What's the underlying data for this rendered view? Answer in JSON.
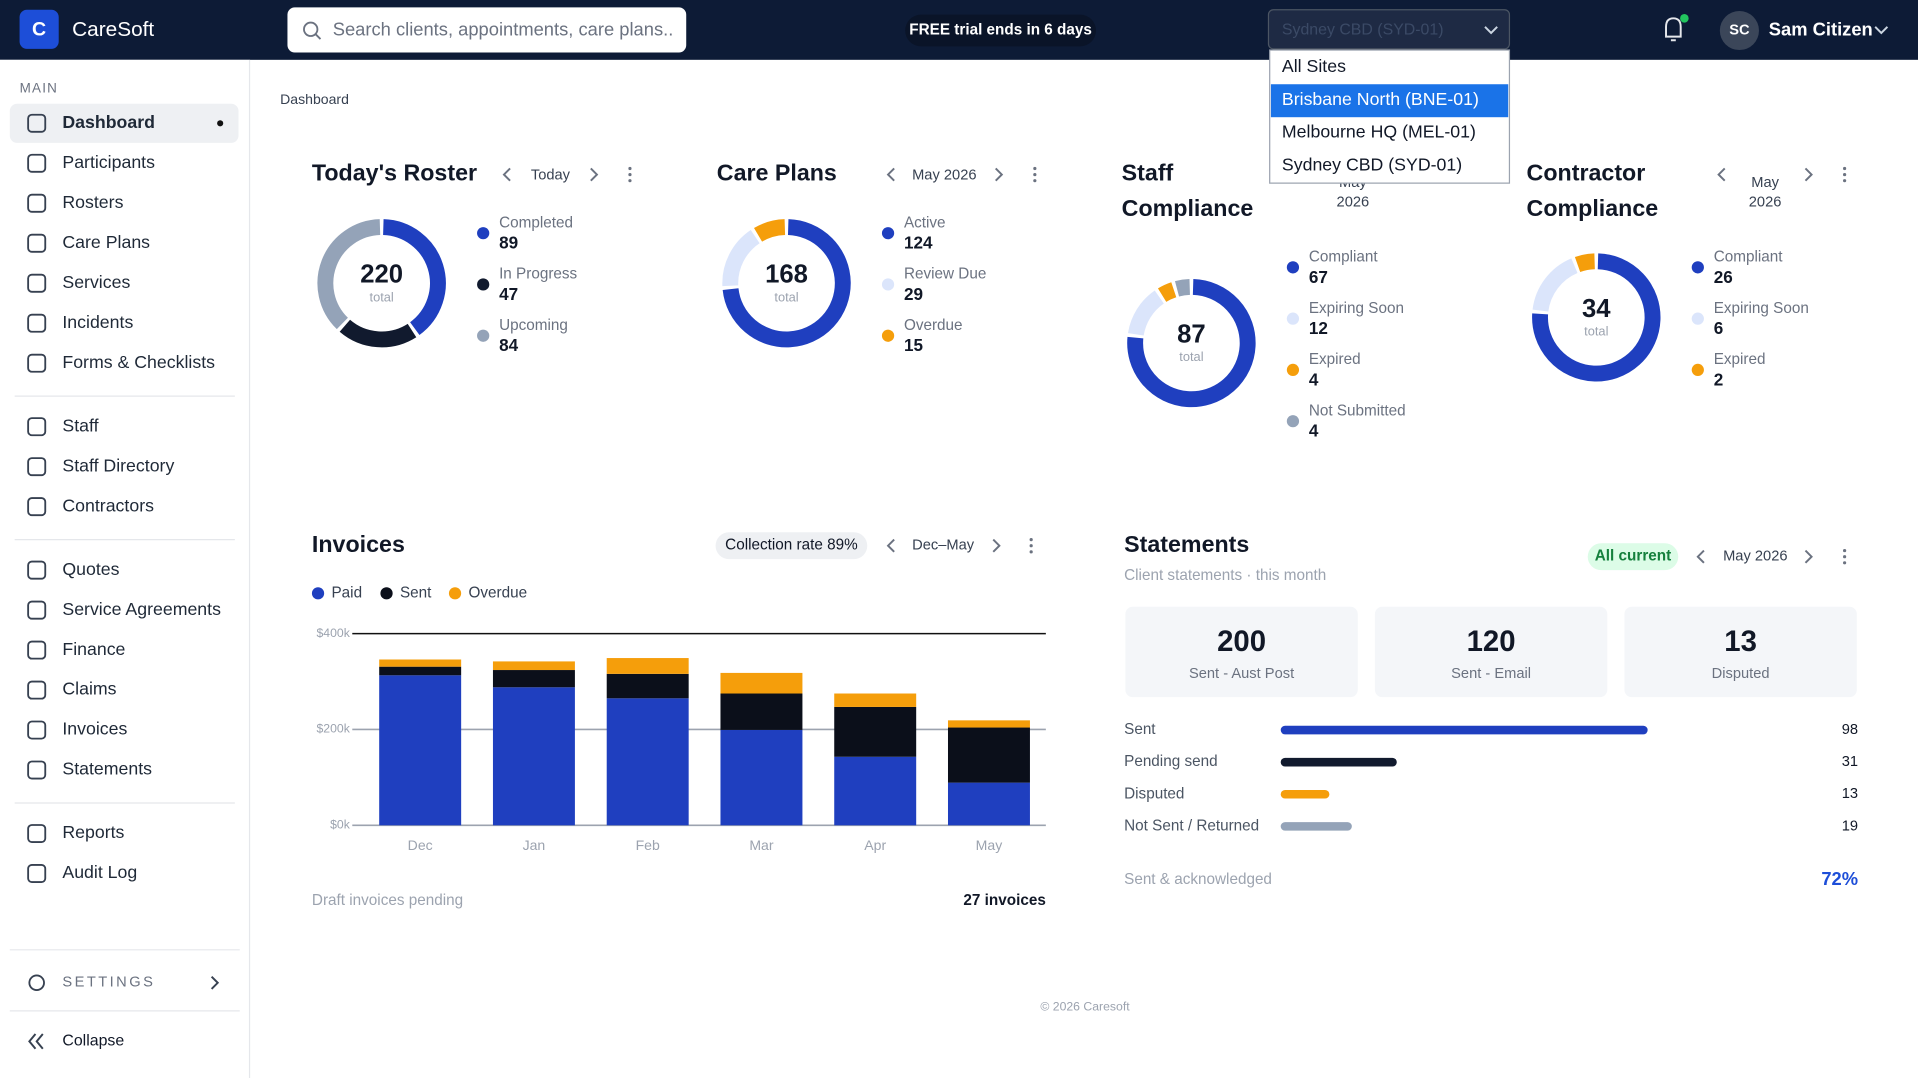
{
  "header": {
    "logo_letter": "C",
    "app_name": "CareSoft",
    "search_placeholder": "Search clients, appointments, care plans..",
    "trial_banner": "FREE trial ends in 6 days",
    "site_select": "Sydney CBD (SYD-01)",
    "user_initials": "SC",
    "user_name": "Sam Citizen"
  },
  "site_dropdown": {
    "options": [
      "All Sites",
      "Brisbane North (BNE-01)",
      "Melbourne HQ (MEL-01)",
      "Sydney CBD (SYD-01)"
    ],
    "highlighted": 1
  },
  "sidebar": {
    "section_label": "MAIN",
    "groups": [
      [
        "Dashboard",
        "Participants",
        "Rosters",
        "Care Plans",
        "Services",
        "Incidents",
        "Forms & Checklists"
      ],
      [
        "Staff",
        "Staff Directory",
        "Contractors"
      ],
      [
        "Quotes",
        "Service Agreements",
        "Finance",
        "Claims",
        "Invoices",
        "Statements"
      ],
      [
        "Reports",
        "Audit Log"
      ]
    ],
    "active": [
      0,
      0
    ],
    "settings_label": "SETTINGS",
    "collapse_label": "Collapse"
  },
  "breadcrumb": "Dashboard",
  "donut_cards": [
    {
      "title": [
        "Today's Roster"
      ],
      "period": [
        "Today"
      ],
      "total": 220,
      "total_label": "total",
      "segments": [
        {
          "name": "Completed",
          "value": 89,
          "color": "#1f3fbf"
        },
        {
          "name": "In Progress",
          "value": 47,
          "color": "#111a2e"
        },
        {
          "name": "Upcoming",
          "value": 84,
          "color": "#94a3b8"
        }
      ]
    },
    {
      "title": [
        "Care Plans"
      ],
      "period": [
        "May 2026"
      ],
      "total": 168,
      "total_label": "total",
      "segments": [
        {
          "name": "Active",
          "value": 124,
          "color": "#1f3fbf"
        },
        {
          "name": "Review Due",
          "value": 29,
          "color": "#dbe5fb"
        },
        {
          "name": "Overdue",
          "value": 15,
          "color": "#f59e0b"
        }
      ]
    },
    {
      "title": [
        "Staff",
        "Compliance"
      ],
      "period": [
        "May",
        "2026"
      ],
      "total": 87,
      "total_label": "total",
      "segments": [
        {
          "name": "Compliant",
          "value": 67,
          "color": "#1f3fbf"
        },
        {
          "name": "Expiring Soon",
          "value": 12,
          "color": "#dbe5fb"
        },
        {
          "name": "Expired",
          "value": 4,
          "color": "#f59e0b"
        },
        {
          "name": "Not Submitted",
          "value": 4,
          "color": "#94a3b8"
        }
      ]
    },
    {
      "title": [
        "Contractor",
        "Compliance"
      ],
      "period": [
        "May",
        "2026"
      ],
      "total": 34,
      "total_label": "total",
      "segments": [
        {
          "name": "Compliant",
          "value": 26,
          "color": "#1f3fbf"
        },
        {
          "name": "Expiring Soon",
          "value": 6,
          "color": "#dbe5fb"
        },
        {
          "name": "Expired",
          "value": 2,
          "color": "#f59e0b"
        }
      ]
    }
  ],
  "invoices": {
    "title": "Invoices",
    "badge": "Collection rate 89%",
    "period": "Dec–May",
    "chart": {
      "type": "bar",
      "stacked": true,
      "categories": [
        "Dec",
        "Jan",
        "Feb",
        "Mar",
        "Apr",
        "May"
      ],
      "series": [
        {
          "name": "Paid",
          "color": "#1f3fbf",
          "values": [
            313,
            288,
            265,
            199,
            143,
            89
          ]
        },
        {
          "name": "Sent",
          "color": "#0b0f1a",
          "values": [
            18,
            36,
            51,
            76,
            104,
            115
          ]
        },
        {
          "name": "Overdue",
          "color": "#f59e0b",
          "values": [
            15,
            18,
            33,
            43,
            28,
            15
          ]
        }
      ],
      "ylim": [
        0,
        400
      ],
      "yticks": [
        {
          "value": 0,
          "label": "$0k"
        },
        {
          "value": 200,
          "label": "$200k"
        },
        {
          "value": 400,
          "label": "$400k"
        }
      ]
    },
    "footer_label": "Draft invoices pending",
    "footer_value": "27 invoices"
  },
  "statements": {
    "title": "Statements",
    "subtitle": "Client statements · this month",
    "badge": "All current",
    "period": "May 2026",
    "stats": [
      {
        "value": 200,
        "label": "Sent - Aust Post"
      },
      {
        "value": 120,
        "label": "Sent - Email"
      },
      {
        "value": 13,
        "label": "Disputed"
      }
    ],
    "breakdown": [
      {
        "name": "Sent",
        "value": 98,
        "color": "#1f3fbf"
      },
      {
        "name": "Pending send",
        "value": 31,
        "color": "#111a2e"
      },
      {
        "name": "Disputed",
        "value": 13,
        "color": "#f59e0b"
      },
      {
        "name": "Not Sent / Returned",
        "value": 19,
        "color": "#94a3b8"
      }
    ],
    "footer_label": "Sent & acknowledged",
    "footer_value": "72%"
  },
  "footer": "© 2026 Caresoft"
}
